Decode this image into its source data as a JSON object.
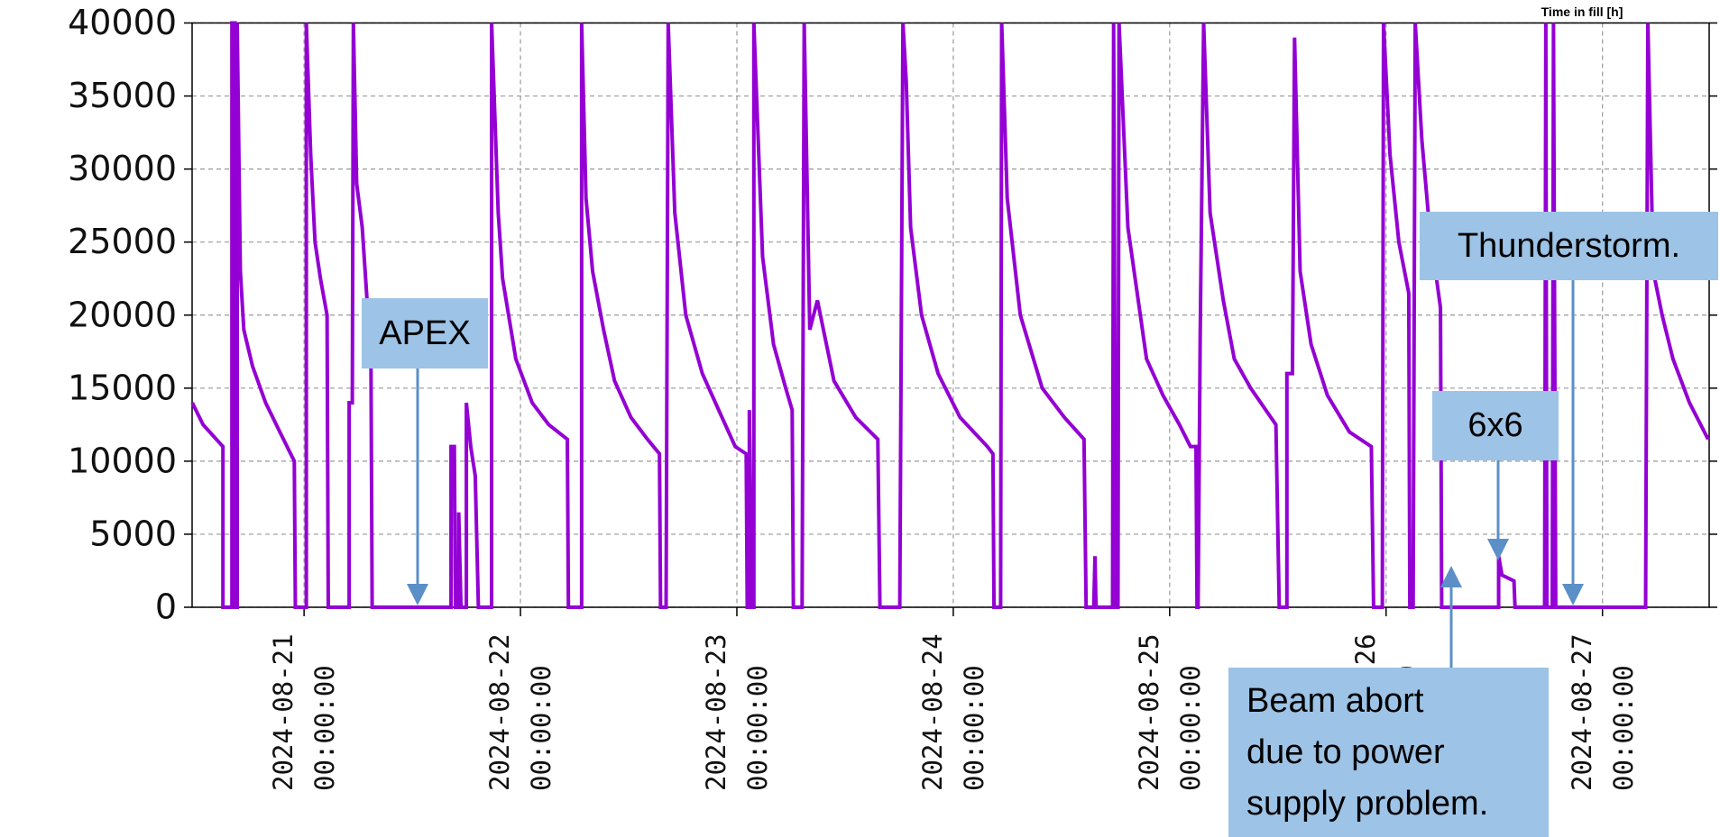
{
  "chart_data": {
    "type": "line",
    "title": "Time in fill [h]",
    "color": "#9400d3",
    "grid": true,
    "xlim": [
      "2024-08-20 11:35:00",
      "2024-08-27 11:50:00"
    ],
    "xticks": [
      "2024-08-21 00:00:00",
      "2024-08-22 00:00:00",
      "2024-08-23 00:00:00",
      "2024-08-24 00:00:00",
      "2024-08-25 00:00:00",
      "2024-08-26 00:00:00",
      "2024-08-27 00:00:00"
    ],
    "ylim": [
      0,
      40000
    ],
    "yticks": [
      0,
      5000,
      10000,
      15000,
      20000,
      25000,
      30000,
      35000,
      40000
    ],
    "annotations": [
      "APEX",
      "Thunderstorm.",
      "6x6",
      "Beam abort\ndue to power\nsupply problem."
    ],
    "x": [
      "2024-08-20 11:36:00",
      "2024-08-20 12:48:00",
      "2024-08-20 15:00:00",
      "2024-08-20 15:00:00",
      "2024-08-20 16:00:00",
      "2024-08-20 16:00:00",
      "2024-08-20 16:20:00",
      "2024-08-20 16:20:00",
      "2024-08-20 16:35:00",
      "2024-08-20 16:35:00",
      "2024-08-20 16:56:00",
      "2024-08-20 17:19:00",
      "2024-08-20 18:17:00",
      "2024-08-20 19:44:00",
      "2024-08-20 21:19:00",
      "2024-08-20 22:55:00",
      "2024-08-20 23:02:00",
      "2024-08-21 00:15:00",
      "2024-08-21 00:15:00",
      "2024-08-21 00:44:00",
      "2024-08-21 01:13:00",
      "2024-08-21 01:49:00",
      "2024-08-21 02:33:00",
      "2024-08-21 02:41:00",
      "2024-08-21 05:00:00",
      "2024-08-21 05:00:00",
      "2024-08-21 05:21:00",
      "2024-08-21 05:28:00",
      "2024-08-21 05:50:00",
      "2024-08-21 06:27:00",
      "2024-08-21 07:25:00",
      "2024-08-21 07:33:00",
      "2024-08-21 16:18:00",
      "2024-08-21 16:18:00",
      "2024-08-21 16:40:00",
      "2024-08-21 16:47:00",
      "2024-08-21 17:09:00",
      "2024-08-21 17:09:00",
      "2024-08-21 17:24:00",
      "2024-08-21 18:00:00",
      "2024-08-21 18:00:00",
      "2024-08-21 18:29:00",
      "2024-08-21 18:59:00",
      "2024-08-21 19:20:00",
      "2024-08-21 20:48:00",
      "2024-08-21 20:48:00",
      "2024-08-21 21:32:00",
      "2024-08-21 22:01:00",
      "2024-08-21 23:29:00",
      "2024-08-22 01:18:00",
      "2024-08-22 03:08:00",
      "2024-08-22 05:12:00",
      "2024-08-22 05:19:00",
      "2024-08-22 06:47:00",
      "2024-08-22 06:47:00",
      "2024-08-22 07:16:00",
      "2024-08-22 08:00:00",
      "2024-08-22 09:13:00",
      "2024-08-22 10:26:00",
      "2024-08-22 12:15:00",
      "2024-08-22 14:05:00",
      "2024-08-22 15:25:00",
      "2024-08-22 15:32:00",
      "2024-08-22 16:09:00",
      "2024-08-22 16:23:00",
      "2024-08-22 17:07:00",
      "2024-08-22 18:20:00",
      "2024-08-22 20:10:00",
      "2024-08-22 21:59:00",
      "2024-08-22 23:49:00",
      "2024-08-23 01:02:00",
      "2024-08-23 01:09:00",
      "2024-08-23 01:23:00",
      "2024-08-23 01:23:00",
      "2024-08-23 01:38:00",
      "2024-08-23 01:53:00",
      "2024-08-23 01:53:00",
      "2024-08-23 02:51:00",
      "2024-08-23 04:04:00",
      "2024-08-23 05:25:00",
      "2024-08-23 06:08:00",
      "2024-08-23 06:16:00",
      "2024-08-23 07:14:00",
      "2024-08-23 07:28:00",
      "2024-08-23 08:05:00",
      "2024-08-23 08:56:00",
      "2024-08-23 10:46:00",
      "2024-08-23 13:11:00",
      "2024-08-23 15:38:00",
      "2024-08-23 15:52:00",
      "2024-08-23 18:04:00",
      "2024-08-23 18:25:00",
      "2024-08-23 18:47:00",
      "2024-08-23 19:16:00",
      "2024-08-23 20:29:00",
      "2024-08-23 22:19:00",
      "2024-08-24 00:45:00",
      "2024-08-24 03:47:00",
      "2024-08-24 04:24:00",
      "2024-08-24 04:31:00",
      "2024-08-24 05:15:00",
      "2024-08-24 05:22:00",
      "2024-08-24 05:59:00",
      "2024-08-24 07:26:00",
      "2024-08-24 09:52:00",
      "2024-08-24 12:19:00",
      "2024-08-24 14:30:00",
      "2024-08-24 14:44:00",
      "2024-08-24 15:35:00",
      "2024-08-24 15:43:00",
      "2024-08-24 15:50:00",
      "2024-08-24 17:40:00",
      "2024-08-24 17:47:00",
      "2024-08-24 18:01:00",
      "2024-08-24 18:16:00",
      "2024-08-24 18:23:00",
      "2024-08-24 19:22:00",
      "2024-08-24 21:26:00",
      "2024-08-24 23:16:00",
      "2024-08-25 01:05:00",
      "2024-08-25 02:18:00",
      "2024-08-25 02:55:00",
      "2024-08-25 03:02:00",
      "2024-08-25 03:09:00",
      "2024-08-25 03:23:00",
      "2024-08-25 03:46:00",
      "2024-08-25 04:29:00",
      "2024-08-25 05:57:00",
      "2024-08-25 07:10:00",
      "2024-08-25 08:59:00",
      "2024-08-25 11:47:00",
      "2024-08-25 12:09:00",
      "2024-08-25 13:00:00",
      "2024-08-25 13:00:00",
      "2024-08-25 13:37:00",
      "2024-08-25 13:51:00",
      "2024-08-25 14:28:00",
      "2024-08-25 15:41:00",
      "2024-08-25 17:30:00",
      "2024-08-25 19:56:00",
      "2024-08-25 22:22:00",
      "2024-08-25 22:37:00",
      "2024-08-25 23:35:00",
      "2024-08-25 23:43:00",
      "2024-08-26 00:26:00",
      "2024-08-26 01:25:00",
      "2024-08-26 02:31:00",
      "2024-08-26 02:38:00",
      "2024-08-26 03:00:00",
      "2024-08-26 03:14:00",
      "2024-08-26 03:58:00",
      "2024-08-26 04:49:00",
      "2024-08-26 06:02:00",
      "2024-08-26 06:10:00",
      "2024-08-26 12:29:00",
      "2024-08-26 12:29:00",
      "2024-08-26 12:51:00",
      "2024-08-26 14:11:00",
      "2024-08-26 14:18:00",
      "2024-08-26 17:35:00",
      "2024-08-26 17:43:00",
      "2024-08-26 17:50:00",
      "2024-08-26 18:26:00",
      "2024-08-26 18:34:00",
      "2024-08-26 18:49:00",
      "2024-08-27 04:47:00",
      "2024-08-27 05:02:00",
      "2024-08-27 05:38:00",
      "2024-08-27 06:37:00",
      "2024-08-27 07:49:00",
      "2024-08-27 09:39:00",
      "2024-08-27 11:43:00"
    ],
    "values": [
      14000,
      12500,
      11000,
      0,
      0,
      40000,
      40000,
      0,
      0,
      40000,
      23000,
      19000,
      16500,
      14000,
      12000,
      10000,
      0,
      0,
      40000,
      31000,
      25000,
      22500,
      20000,
      0,
      0,
      14000,
      14000,
      40000,
      29000,
      26000,
      17000,
      0,
      0,
      11000,
      11000,
      0,
      0,
      6500,
      0,
      0,
      14000,
      11000,
      9000,
      0,
      0,
      40000,
      27000,
      22500,
      17000,
      14000,
      12500,
      11500,
      0,
      0,
      40000,
      28000,
      23000,
      19000,
      15500,
      13000,
      11500,
      10500,
      0,
      0,
      40000,
      27000,
      20000,
      16000,
      13500,
      11000,
      10500,
      0,
      0,
      13500,
      0,
      0,
      40000,
      24000,
      18000,
      15000,
      13500,
      0,
      0,
      40000,
      19000,
      21000,
      15500,
      13000,
      11500,
      0,
      0,
      40000,
      36000,
      26000,
      20000,
      16000,
      13000,
      11000,
      10500,
      0,
      0,
      40000,
      28000,
      20000,
      15000,
      13000,
      11500,
      0,
      0,
      3500,
      0,
      0,
      40000,
      0,
      0,
      40000,
      26000,
      17000,
      14500,
      12500,
      11000,
      11000,
      0,
      0,
      18500,
      40000,
      27000,
      21000,
      17000,
      15000,
      12500,
      0,
      0,
      16000,
      16000,
      39000,
      23000,
      18000,
      14500,
      12000,
      11000,
      0,
      0,
      40000,
      31000,
      25000,
      21500,
      0,
      0,
      40000,
      32000,
      26000,
      20500,
      0,
      0,
      3500,
      2200,
      1800,
      0,
      0,
      40000,
      0,
      0,
      40000,
      0,
      0,
      40000,
      23000,
      20000,
      17000,
      14000,
      11500
    ]
  }
}
